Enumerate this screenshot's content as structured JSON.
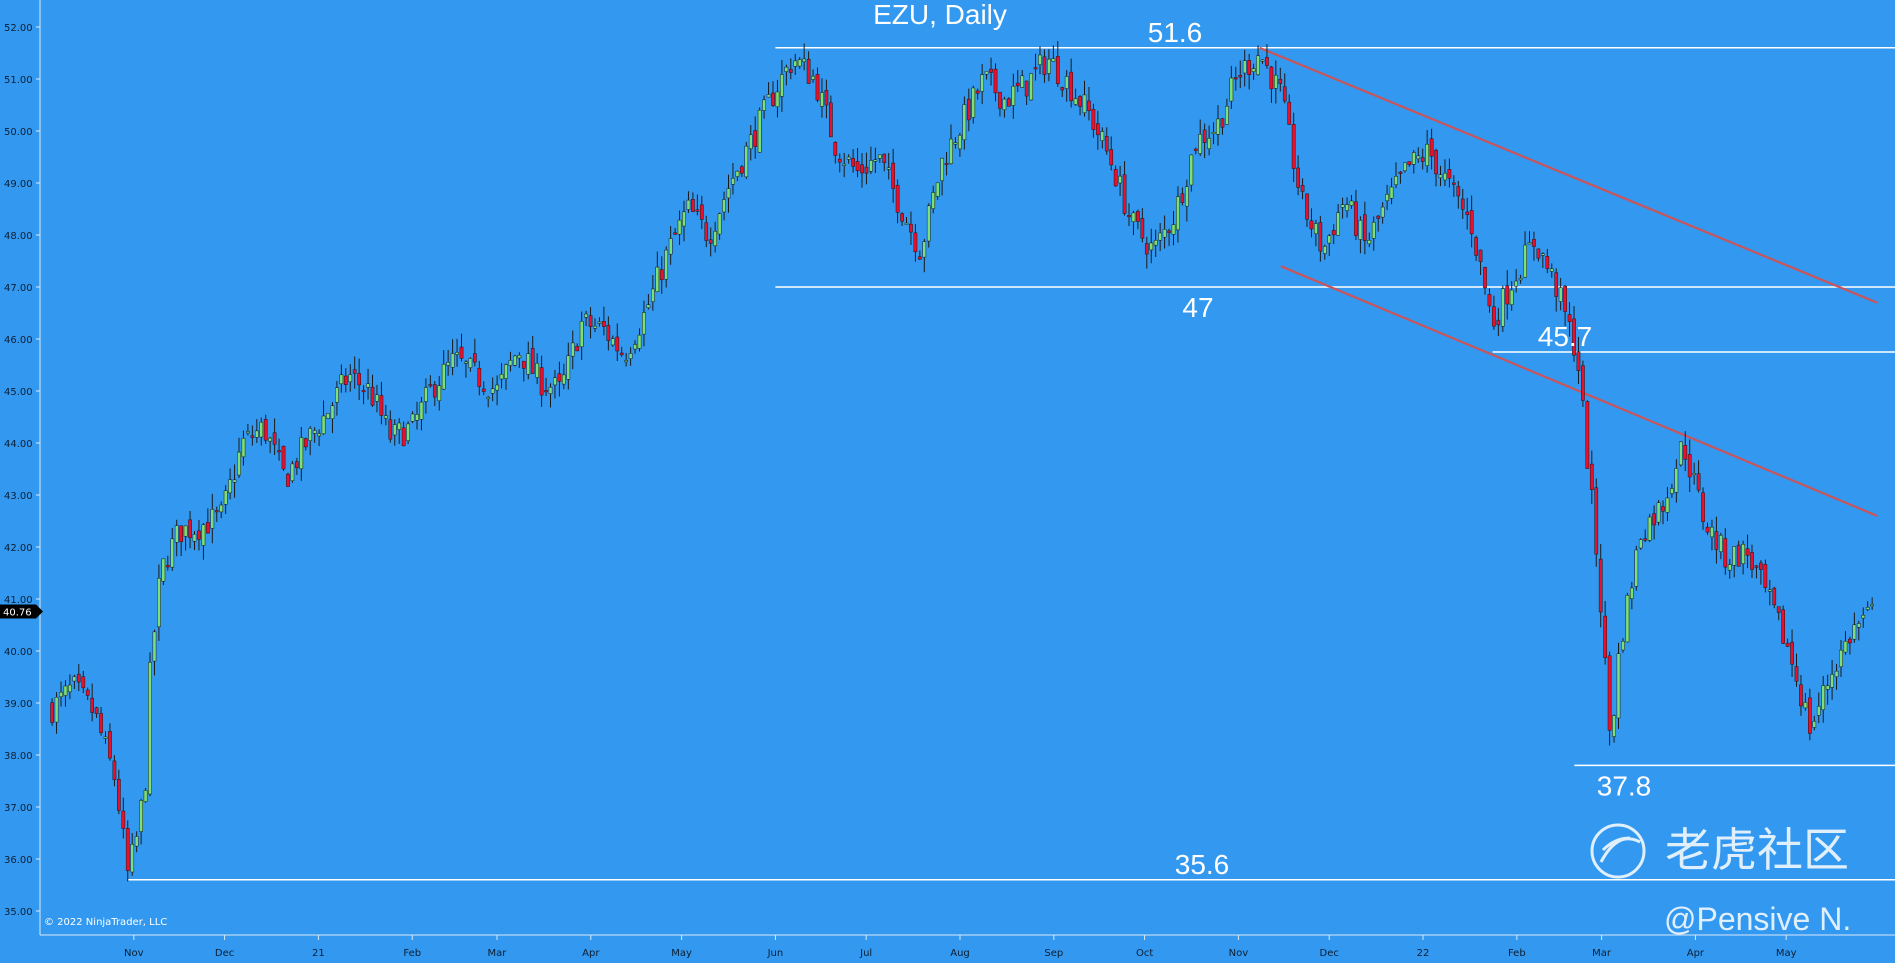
{
  "chart_data": {
    "type": "candlestick",
    "title": "EZU, Daily",
    "copyright": "© 2022 NinjaTrader, LLC",
    "watermark": {
      "logo_text": "老虎社区",
      "author": "@Pensive N."
    },
    "ylim": [
      34.8,
      52.4
    ],
    "y_ticks": [
      "35.00",
      "36.00",
      "37.00",
      "38.00",
      "39.00",
      "40.00",
      "41.00",
      "42.00",
      "43.00",
      "44.00",
      "45.00",
      "46.00",
      "47.00",
      "48.00",
      "49.00",
      "50.00",
      "51.00",
      "52.00"
    ],
    "current_price": "40.76",
    "x_ticks": [
      "Nov",
      "Dec",
      "21",
      "Feb",
      "Mar",
      "Apr",
      "May",
      "Jun",
      "Jul",
      "Aug",
      "Sep",
      "Oct",
      "Nov",
      "Dec",
      "22",
      "Feb",
      "Mar",
      "Apr",
      "May"
    ],
    "horizontal_levels": [
      {
        "label": "51.6",
        "value": 51.6,
        "from": "2021-06-01"
      },
      {
        "label": "47",
        "value": 47.0,
        "from": "2021-06-01"
      },
      {
        "label": "45.7",
        "value": 45.75,
        "from": "2022-01-24"
      },
      {
        "label": "37.8",
        "value": 37.8,
        "from": "2022-02-20"
      },
      {
        "label": "35.6",
        "value": 35.6,
        "from": "2020-10-30"
      }
    ],
    "trend_lines": [
      {
        "start": [
          "2021-11-08",
          51.6
        ],
        "end": [
          "2022-05-31",
          46.7
        ]
      },
      {
        "start": [
          "2021-11-15",
          47.4
        ],
        "end": [
          "2022-05-31",
          42.6
        ]
      }
    ],
    "closes": [
      [
        "2020-10-05",
        38.9
      ],
      [
        "2020-10-12",
        39.3
      ],
      [
        "2020-10-19",
        38.8
      ],
      [
        "2020-10-26",
        37.5
      ],
      [
        "2020-10-30",
        35.7
      ],
      [
        "2020-11-02",
        36.4
      ],
      [
        "2020-11-05",
        37.6
      ],
      [
        "2020-11-06",
        39.3
      ],
      [
        "2020-11-09",
        41.1
      ],
      [
        "2020-11-11",
        41.7
      ],
      [
        "2020-11-16",
        42.3
      ],
      [
        "2020-11-23",
        42.4
      ],
      [
        "2020-11-30",
        42.6
      ],
      [
        "2020-12-07",
        44.0
      ],
      [
        "2020-12-14",
        44.3
      ],
      [
        "2020-12-21",
        43.3
      ],
      [
        "2020-12-28",
        44.0
      ],
      [
        "2021-01-04",
        44.6
      ],
      [
        "2021-01-11",
        45.3
      ],
      [
        "2021-01-18",
        45.0
      ],
      [
        "2021-01-25",
        44.1
      ],
      [
        "2021-02-01",
        44.3
      ],
      [
        "2021-02-08",
        45.1
      ],
      [
        "2021-02-15",
        45.6
      ],
      [
        "2021-02-22",
        45.3
      ],
      [
        "2021-03-01",
        45.0
      ],
      [
        "2021-03-08",
        45.8
      ],
      [
        "2021-03-15",
        45.2
      ],
      [
        "2021-03-22",
        45.0
      ],
      [
        "2021-03-29",
        46.3
      ],
      [
        "2021-04-05",
        46.2
      ],
      [
        "2021-04-12",
        45.7
      ],
      [
        "2021-04-19",
        46.5
      ],
      [
        "2021-04-26",
        47.6
      ],
      [
        "2021-05-03",
        48.5
      ],
      [
        "2021-05-10",
        48.0
      ],
      [
        "2021-05-17",
        49.0
      ],
      [
        "2021-05-24",
        49.8
      ],
      [
        "2021-06-01",
        50.8
      ],
      [
        "2021-06-07",
        51.4
      ],
      [
        "2021-06-14",
        51.0
      ],
      [
        "2021-06-21",
        49.7
      ],
      [
        "2021-06-28",
        49.2
      ],
      [
        "2021-07-05",
        49.5
      ],
      [
        "2021-07-12",
        48.6
      ],
      [
        "2021-07-19",
        47.7
      ],
      [
        "2021-07-26",
        49.4
      ],
      [
        "2021-08-02",
        50.2
      ],
      [
        "2021-08-09",
        51.0
      ],
      [
        "2021-08-16",
        50.6
      ],
      [
        "2021-08-23",
        50.9
      ],
      [
        "2021-08-30",
        51.4
      ],
      [
        "2021-09-06",
        50.9
      ],
      [
        "2021-09-13",
        50.3
      ],
      [
        "2021-09-20",
        49.4
      ],
      [
        "2021-09-27",
        48.2
      ],
      [
        "2021-10-04",
        47.7
      ],
      [
        "2021-10-11",
        48.4
      ],
      [
        "2021-10-18",
        49.8
      ],
      [
        "2021-10-25",
        50.1
      ],
      [
        "2021-11-01",
        51.1
      ],
      [
        "2021-11-08",
        51.5
      ],
      [
        "2021-11-15",
        50.7
      ],
      [
        "2021-11-22",
        48.6
      ],
      [
        "2021-11-29",
        47.7
      ],
      [
        "2021-12-06",
        48.7
      ],
      [
        "2021-12-13",
        47.8
      ],
      [
        "2021-12-20",
        48.6
      ],
      [
        "2021-12-27",
        49.3
      ],
      [
        "2022-01-03",
        49.6
      ],
      [
        "2022-01-10",
        48.9
      ],
      [
        "2022-01-17",
        48.2
      ],
      [
        "2022-01-24",
        46.3
      ],
      [
        "2022-01-31",
        47.2
      ],
      [
        "2022-02-07",
        47.9
      ],
      [
        "2022-02-14",
        47.0
      ],
      [
        "2022-02-21",
        45.7
      ],
      [
        "2022-02-28",
        41.5
      ],
      [
        "2022-03-04",
        38.2
      ],
      [
        "2022-03-07",
        40.1
      ],
      [
        "2022-03-14",
        42.3
      ],
      [
        "2022-03-21",
        42.8
      ],
      [
        "2022-03-28",
        44.0
      ],
      [
        "2022-04-04",
        42.5
      ],
      [
        "2022-04-11",
        41.8
      ],
      [
        "2022-04-18",
        41.9
      ],
      [
        "2022-04-25",
        41.0
      ],
      [
        "2022-05-02",
        40.0
      ],
      [
        "2022-05-09",
        38.5
      ],
      [
        "2022-05-16",
        39.6
      ],
      [
        "2022-05-23",
        40.4
      ],
      [
        "2022-05-31",
        40.8
      ]
    ]
  }
}
